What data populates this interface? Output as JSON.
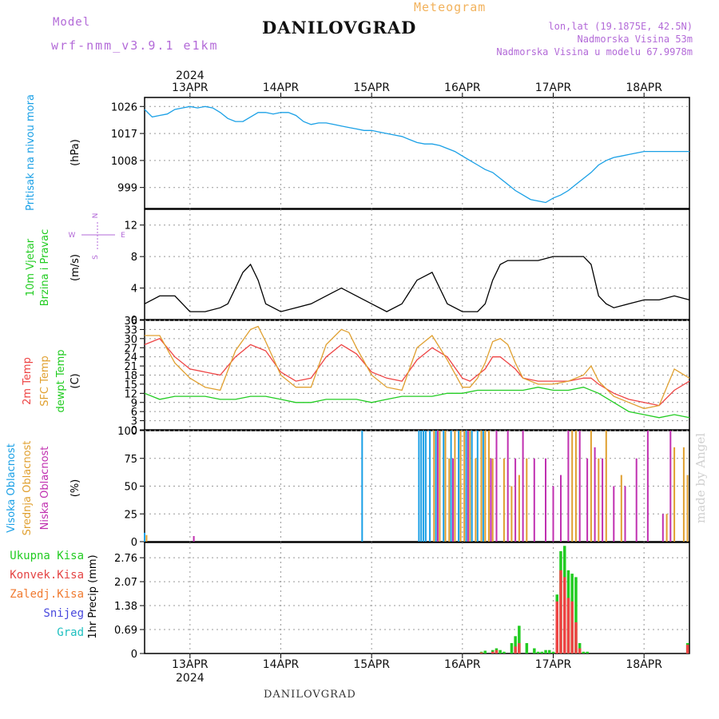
{
  "header": {
    "model_label": "Model",
    "model_name": "wrf-nmm_v3.9.1 e1km",
    "title": "DANILOVGRAD",
    "meteogram_label": "Meteogram",
    "lonlat": "lon,lat (19.1875E, 42.5N)",
    "elevation": "Nadmorska Visina 53m",
    "model_elevation": "Nadmorska Visina u modelu 67.9978m"
  },
  "footer": {
    "station": "DANILOVGRAD",
    "made_by": "made by Angel"
  },
  "colors": {
    "pressure": "#1aa0e6",
    "wind_speed": "#000000",
    "temp_2m": "#ee4444",
    "temp_sfc": "#e0a030",
    "dewpoint": "#22cc22",
    "cloud_high": "#1aa0e6",
    "cloud_mid": "#e0a030",
    "cloud_low": "#c030b0",
    "precip_total": "#22cc22",
    "precip_conv": "#e44",
    "grid": "#999999"
  },
  "chart_data": [
    {
      "type": "line",
      "panel": "pressure",
      "ylabel_lines": [
        "Pritisak na nivou mora",
        "(hPa)"
      ],
      "y_ticks": [
        "1026",
        "1017",
        "1008",
        "999"
      ],
      "y_tick_values": [
        1026,
        1017,
        1008,
        999
      ],
      "ylim": [
        992,
        1029
      ],
      "x_unit": "hours since 12 APR 12:00",
      "x_range": [
        0,
        144
      ],
      "top_axis_year": "2024",
      "date_labels": [
        "13APR",
        "14APR",
        "15APR",
        "16APR",
        "17APR",
        "18APR"
      ],
      "date_hours": [
        12,
        36,
        60,
        84,
        108,
        132
      ],
      "series": [
        {
          "x": [
            0,
            2,
            4,
            6,
            8,
            10,
            12,
            14,
            16,
            18,
            20,
            22,
            24,
            26,
            28,
            30,
            32,
            34,
            36,
            38,
            40,
            42,
            44,
            46,
            48,
            50,
            52,
            54,
            56,
            58,
            60,
            62,
            64,
            66,
            68,
            70,
            72,
            74,
            76,
            78,
            80,
            82,
            84,
            86,
            88,
            90,
            92,
            94,
            96,
            98,
            100,
            102,
            104,
            106,
            108,
            110,
            112,
            114,
            116,
            118,
            120,
            122,
            124,
            126,
            128,
            130,
            132,
            134,
            136,
            138,
            140,
            142,
            144
          ],
          "values": [
            1025,
            1022.5,
            1023,
            1023.5,
            1025,
            1025.5,
            1026,
            1025.5,
            1026,
            1025.5,
            1024,
            1022,
            1021,
            1021,
            1022.5,
            1024,
            1024,
            1023.5,
            1024,
            1024,
            1023,
            1021,
            1020,
            1020.5,
            1020.5,
            1020,
            1019.5,
            1019,
            1018.5,
            1018,
            1018,
            1017.5,
            1017,
            1016.5,
            1016,
            1015,
            1014,
            1013.5,
            1013.5,
            1013,
            1012,
            1011,
            1009.5,
            1008,
            1006.5,
            1005,
            1004,
            1002,
            1000,
            998,
            996.5,
            995,
            994.5,
            994,
            995.5,
            996.5,
            998,
            1000,
            1002,
            1004,
            1006.5,
            1008,
            1009,
            1009.5,
            1010,
            1010.5,
            1011,
            1011,
            1011,
            1011,
            1011,
            1011,
            1011
          ]
        }
      ]
    },
    {
      "type": "line",
      "panel": "wind",
      "ylabel_lines": [
        "10m Vjetar",
        "Brzina i Pravac",
        "(m/s)"
      ],
      "compass": {
        "north": "N",
        "west": "W",
        "east": "E",
        "south": "S"
      },
      "y_ticks": [
        "12",
        "8",
        "4",
        "0"
      ],
      "y_tick_values": [
        12,
        8,
        4,
        0
      ],
      "ylim": [
        0,
        14
      ],
      "x_range": [
        0,
        144
      ],
      "series": [
        {
          "name": "speed",
          "x": [
            0,
            4,
            8,
            12,
            16,
            20,
            22,
            24,
            26,
            28,
            30,
            32,
            36,
            40,
            44,
            48,
            52,
            56,
            60,
            64,
            68,
            72,
            76,
            80,
            84,
            88,
            90,
            92,
            94,
            96,
            98,
            100,
            104,
            108,
            112,
            116,
            118,
            120,
            122,
            124,
            128,
            132,
            136,
            140,
            144
          ],
          "values": [
            2,
            3,
            3,
            1,
            1,
            1.5,
            2,
            4,
            6,
            7,
            5,
            2,
            1,
            1.5,
            2,
            3,
            4,
            3,
            2,
            1,
            2,
            5,
            6,
            2,
            1,
            1,
            2,
            5,
            7,
            7.5,
            7.5,
            7.5,
            7.5,
            8,
            8,
            8,
            7,
            3,
            2,
            1.5,
            2,
            2.5,
            2.5,
            3,
            2.5
          ]
        }
      ]
    },
    {
      "type": "line",
      "panel": "temperature",
      "ylabel_lines": [
        "2m Temp",
        "SFC Temp",
        "dewpt Temp",
        "(C)"
      ],
      "y_ticks": [
        "36",
        "33",
        "30",
        "27",
        "24",
        "21",
        "18",
        "15",
        "12",
        "9",
        "6",
        "3",
        "0"
      ],
      "y_tick_values": [
        36,
        33,
        30,
        27,
        24,
        21,
        18,
        15,
        12,
        9,
        6,
        3,
        0
      ],
      "ylim": [
        0,
        36
      ],
      "x_range": [
        0,
        144
      ],
      "series": [
        {
          "name": "2m Temp",
          "x": [
            0,
            4,
            8,
            12,
            16,
            20,
            24,
            28,
            32,
            36,
            40,
            44,
            48,
            52,
            56,
            60,
            64,
            68,
            72,
            76,
            80,
            84,
            86,
            88,
            90,
            92,
            94,
            96,
            98,
            100,
            104,
            108,
            112,
            116,
            118,
            120,
            124,
            128,
            132,
            136,
            140,
            144
          ],
          "values": [
            28,
            30,
            24,
            20,
            19,
            18,
            24,
            28,
            26,
            19,
            16,
            17,
            24,
            28,
            25,
            19,
            17,
            16,
            23,
            27,
            24,
            17,
            16,
            18,
            20,
            24,
            24,
            22,
            20,
            17,
            16,
            16,
            16,
            17,
            17,
            15,
            12,
            10,
            9,
            8,
            13,
            16
          ]
        },
        {
          "name": "SFC Temp",
          "x": [
            0,
            4,
            8,
            12,
            16,
            20,
            24,
            28,
            30,
            32,
            36,
            40,
            44,
            48,
            52,
            54,
            56,
            60,
            64,
            68,
            72,
            76,
            80,
            84,
            86,
            88,
            90,
            92,
            94,
            96,
            98,
            100,
            104,
            108,
            112,
            116,
            118,
            120,
            124,
            128,
            132,
            136,
            140,
            144
          ],
          "values": [
            31,
            31,
            22,
            17,
            14,
            13,
            26,
            33,
            34,
            29,
            18,
            14,
            14,
            28,
            33,
            32,
            27,
            18,
            14,
            13,
            27,
            31,
            23,
            14,
            14,
            17,
            22,
            29,
            30,
            28,
            22,
            17,
            15,
            15,
            16,
            18,
            21,
            16,
            11,
            9,
            7,
            8,
            20,
            17
          ]
        },
        {
          "name": "dewpt Temp",
          "x": [
            0,
            4,
            8,
            12,
            16,
            20,
            24,
            28,
            32,
            36,
            40,
            44,
            48,
            52,
            56,
            60,
            64,
            68,
            72,
            76,
            80,
            84,
            88,
            92,
            96,
            100,
            104,
            108,
            112,
            116,
            120,
            124,
            128,
            132,
            136,
            140,
            144
          ],
          "values": [
            12,
            10,
            11,
            11,
            11,
            10,
            10,
            11,
            11,
            10,
            9,
            9,
            10,
            10,
            10,
            9,
            10,
            11,
            11,
            11,
            12,
            12,
            13,
            13,
            13,
            13,
            14,
            13,
            13,
            14,
            12,
            9,
            6,
            5,
            4,
            5,
            4
          ]
        }
      ]
    },
    {
      "type": "bar",
      "panel": "clouds",
      "ylabel_lines": [
        "Visoka Oblacnost",
        "Srednja Oblacnost",
        "Niska Oblacnost",
        "(%)"
      ],
      "y_ticks": [
        "100",
        "75",
        "50",
        "25",
        "0"
      ],
      "y_tick_values": [
        100,
        75,
        50,
        25,
        0
      ],
      "ylim": [
        0,
        100
      ],
      "x_range": [
        0,
        144
      ],
      "series": [
        {
          "name": "Visoka Oblacnost",
          "x": [
            0,
            57.5,
            72.5,
            73.1,
            73.7,
            74.3,
            75.4,
            77,
            79,
            81,
            83,
            85,
            86.5,
            88,
            89.5
          ],
          "values": [
            8,
            100,
            100,
            100,
            100,
            100,
            100,
            100,
            100,
            100,
            100,
            100,
            100,
            100,
            100
          ]
        },
        {
          "name": "Srednja Oblacnost",
          "x": [
            0.5,
            76.5,
            78,
            79.5,
            80.5,
            82,
            83.5,
            84.5,
            86,
            87.5,
            89,
            90,
            91,
            92,
            95,
            97,
            99,
            101,
            113,
            114,
            118,
            120,
            122,
            126,
            138,
            140,
            142.5,
            143.5
          ],
          "values": [
            6,
            100,
            100,
            100,
            75,
            100,
            100,
            100,
            100,
            75,
            100,
            100,
            100,
            75,
            75,
            50,
            60,
            75,
            100,
            100,
            100,
            75,
            100,
            60,
            25,
            85,
            85,
            60
          ]
        },
        {
          "name": "Niska Oblacnost",
          "x": [
            13,
            77.5,
            81.5,
            85.5,
            91.5,
            93,
            96,
            98,
            100,
            103,
            106,
            108,
            110,
            112,
            115,
            117,
            119,
            121,
            124,
            127,
            130,
            133,
            137,
            139
          ],
          "values": [
            5,
            100,
            75,
            100,
            75,
            100,
            100,
            75,
            100,
            75,
            75,
            50,
            60,
            100,
            100,
            75,
            85,
            75,
            50,
            50,
            75,
            100,
            25,
            100
          ]
        }
      ]
    },
    {
      "type": "bar",
      "panel": "precipitation",
      "ylabel_lines": [
        "1hr Precip (mm)"
      ],
      "legend": [
        "Ukupna Kisa",
        "Konvek.Kisa",
        "Zaledj.Kisa",
        "Snijeg",
        "Grad"
      ],
      "y_ticks": [
        "2.76",
        "2.07",
        "1.38",
        "0.69",
        "0"
      ],
      "y_tick_values": [
        2.76,
        2.07,
        1.38,
        0.69,
        0
      ],
      "ylim": [
        0,
        3.2
      ],
      "x_range": [
        0,
        144
      ],
      "bottom_axis_year": "2024",
      "series": [
        {
          "name": "Ukupna Kisa",
          "x": [
            89,
            90,
            92,
            93,
            94,
            95,
            97,
            98,
            99,
            101,
            103,
            104,
            105,
            106,
            107,
            108,
            109,
            110,
            111,
            112,
            113,
            114,
            115,
            116,
            117,
            143.5
          ],
          "values": [
            0.05,
            0.08,
            0.1,
            0.15,
            0.1,
            0.05,
            0.3,
            0.5,
            0.8,
            0.3,
            0.15,
            0.05,
            0.05,
            0.1,
            0.1,
            0.05,
            1.7,
            2.95,
            3.1,
            2.4,
            2.3,
            2.2,
            0.3,
            0.05,
            0.05,
            0.3
          ]
        },
        {
          "name": "Konvek.Kisa",
          "x": [
            89,
            92,
            93,
            98,
            99,
            109,
            110,
            111,
            112,
            113,
            114,
            115,
            143.5
          ],
          "values": [
            0.03,
            0.05,
            0.1,
            0.2,
            0.3,
            1.5,
            2.4,
            2.2,
            1.6,
            1.5,
            0.9,
            0.15,
            0.25
          ]
        }
      ]
    }
  ]
}
